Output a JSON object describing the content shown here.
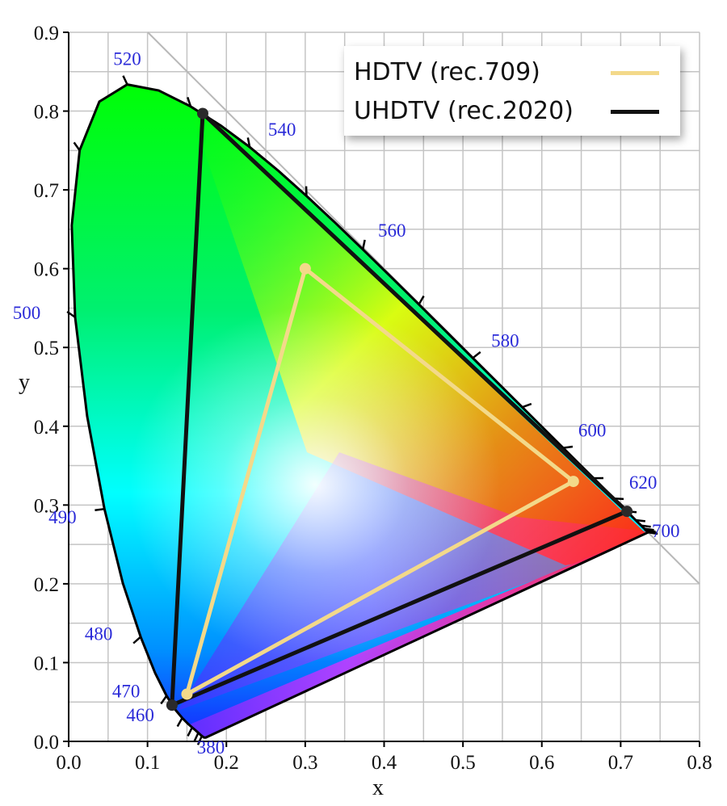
{
  "chart_data": {
    "type": "scatter",
    "title": "",
    "xlabel": "x",
    "ylabel": "y",
    "xlim": [
      0.0,
      0.8
    ],
    "ylim": [
      0.0,
      0.9
    ],
    "grid": true,
    "grid_spacing": 0.05,
    "x_ticks": [
      "0.0",
      "0.1",
      "0.2",
      "0.3",
      "0.4",
      "0.5",
      "0.6",
      "0.7",
      "0.8"
    ],
    "y_ticks": [
      "0.0",
      "0.1",
      "0.2",
      "0.3",
      "0.4",
      "0.5",
      "0.6",
      "0.7",
      "0.8",
      "0.9"
    ],
    "legend_position": "upper right",
    "series": [
      {
        "name": "HDTV (rec.709)",
        "color": "#f3d98a",
        "points": [
          [
            0.64,
            0.33
          ],
          [
            0.3,
            0.6
          ],
          [
            0.15,
            0.06
          ]
        ]
      },
      {
        "name": "UHDTV (rec.2020)",
        "color": "#111111",
        "points": [
          [
            0.708,
            0.292
          ],
          [
            0.17,
            0.797
          ],
          [
            0.131,
            0.046
          ]
        ]
      }
    ],
    "spectral_locus_labels": [
      {
        "nm": "380",
        "x": 0.1741,
        "y": 0.005
      },
      {
        "nm": "460",
        "x": 0.144,
        "y": 0.0297
      },
      {
        "nm": "470",
        "x": 0.1241,
        "y": 0.0578
      },
      {
        "nm": "480",
        "x": 0.0913,
        "y": 0.1327
      },
      {
        "nm": "490",
        "x": 0.0454,
        "y": 0.295
      },
      {
        "nm": "500",
        "x": 0.0082,
        "y": 0.5384
      },
      {
        "nm": "520",
        "x": 0.0743,
        "y": 0.8338
      },
      {
        "nm": "540",
        "x": 0.2296,
        "y": 0.7543
      },
      {
        "nm": "560",
        "x": 0.3731,
        "y": 0.6245
      },
      {
        "nm": "580",
        "x": 0.5125,
        "y": 0.4866
      },
      {
        "nm": "600",
        "x": 0.627,
        "y": 0.3725
      },
      {
        "nm": "620",
        "x": 0.6915,
        "y": 0.3083
      },
      {
        "nm": "700",
        "x": 0.7347,
        "y": 0.2653
      }
    ],
    "annotations": [
      "diagonal reference line x + y = 1"
    ]
  },
  "legend": {
    "items": [
      {
        "label": "HDTV (rec.709)",
        "color": "#f3d98a"
      },
      {
        "label": "UHDTV (rec.2020)",
        "color": "#111111"
      }
    ]
  },
  "axes": {
    "x_title": "x",
    "y_title": "y"
  }
}
